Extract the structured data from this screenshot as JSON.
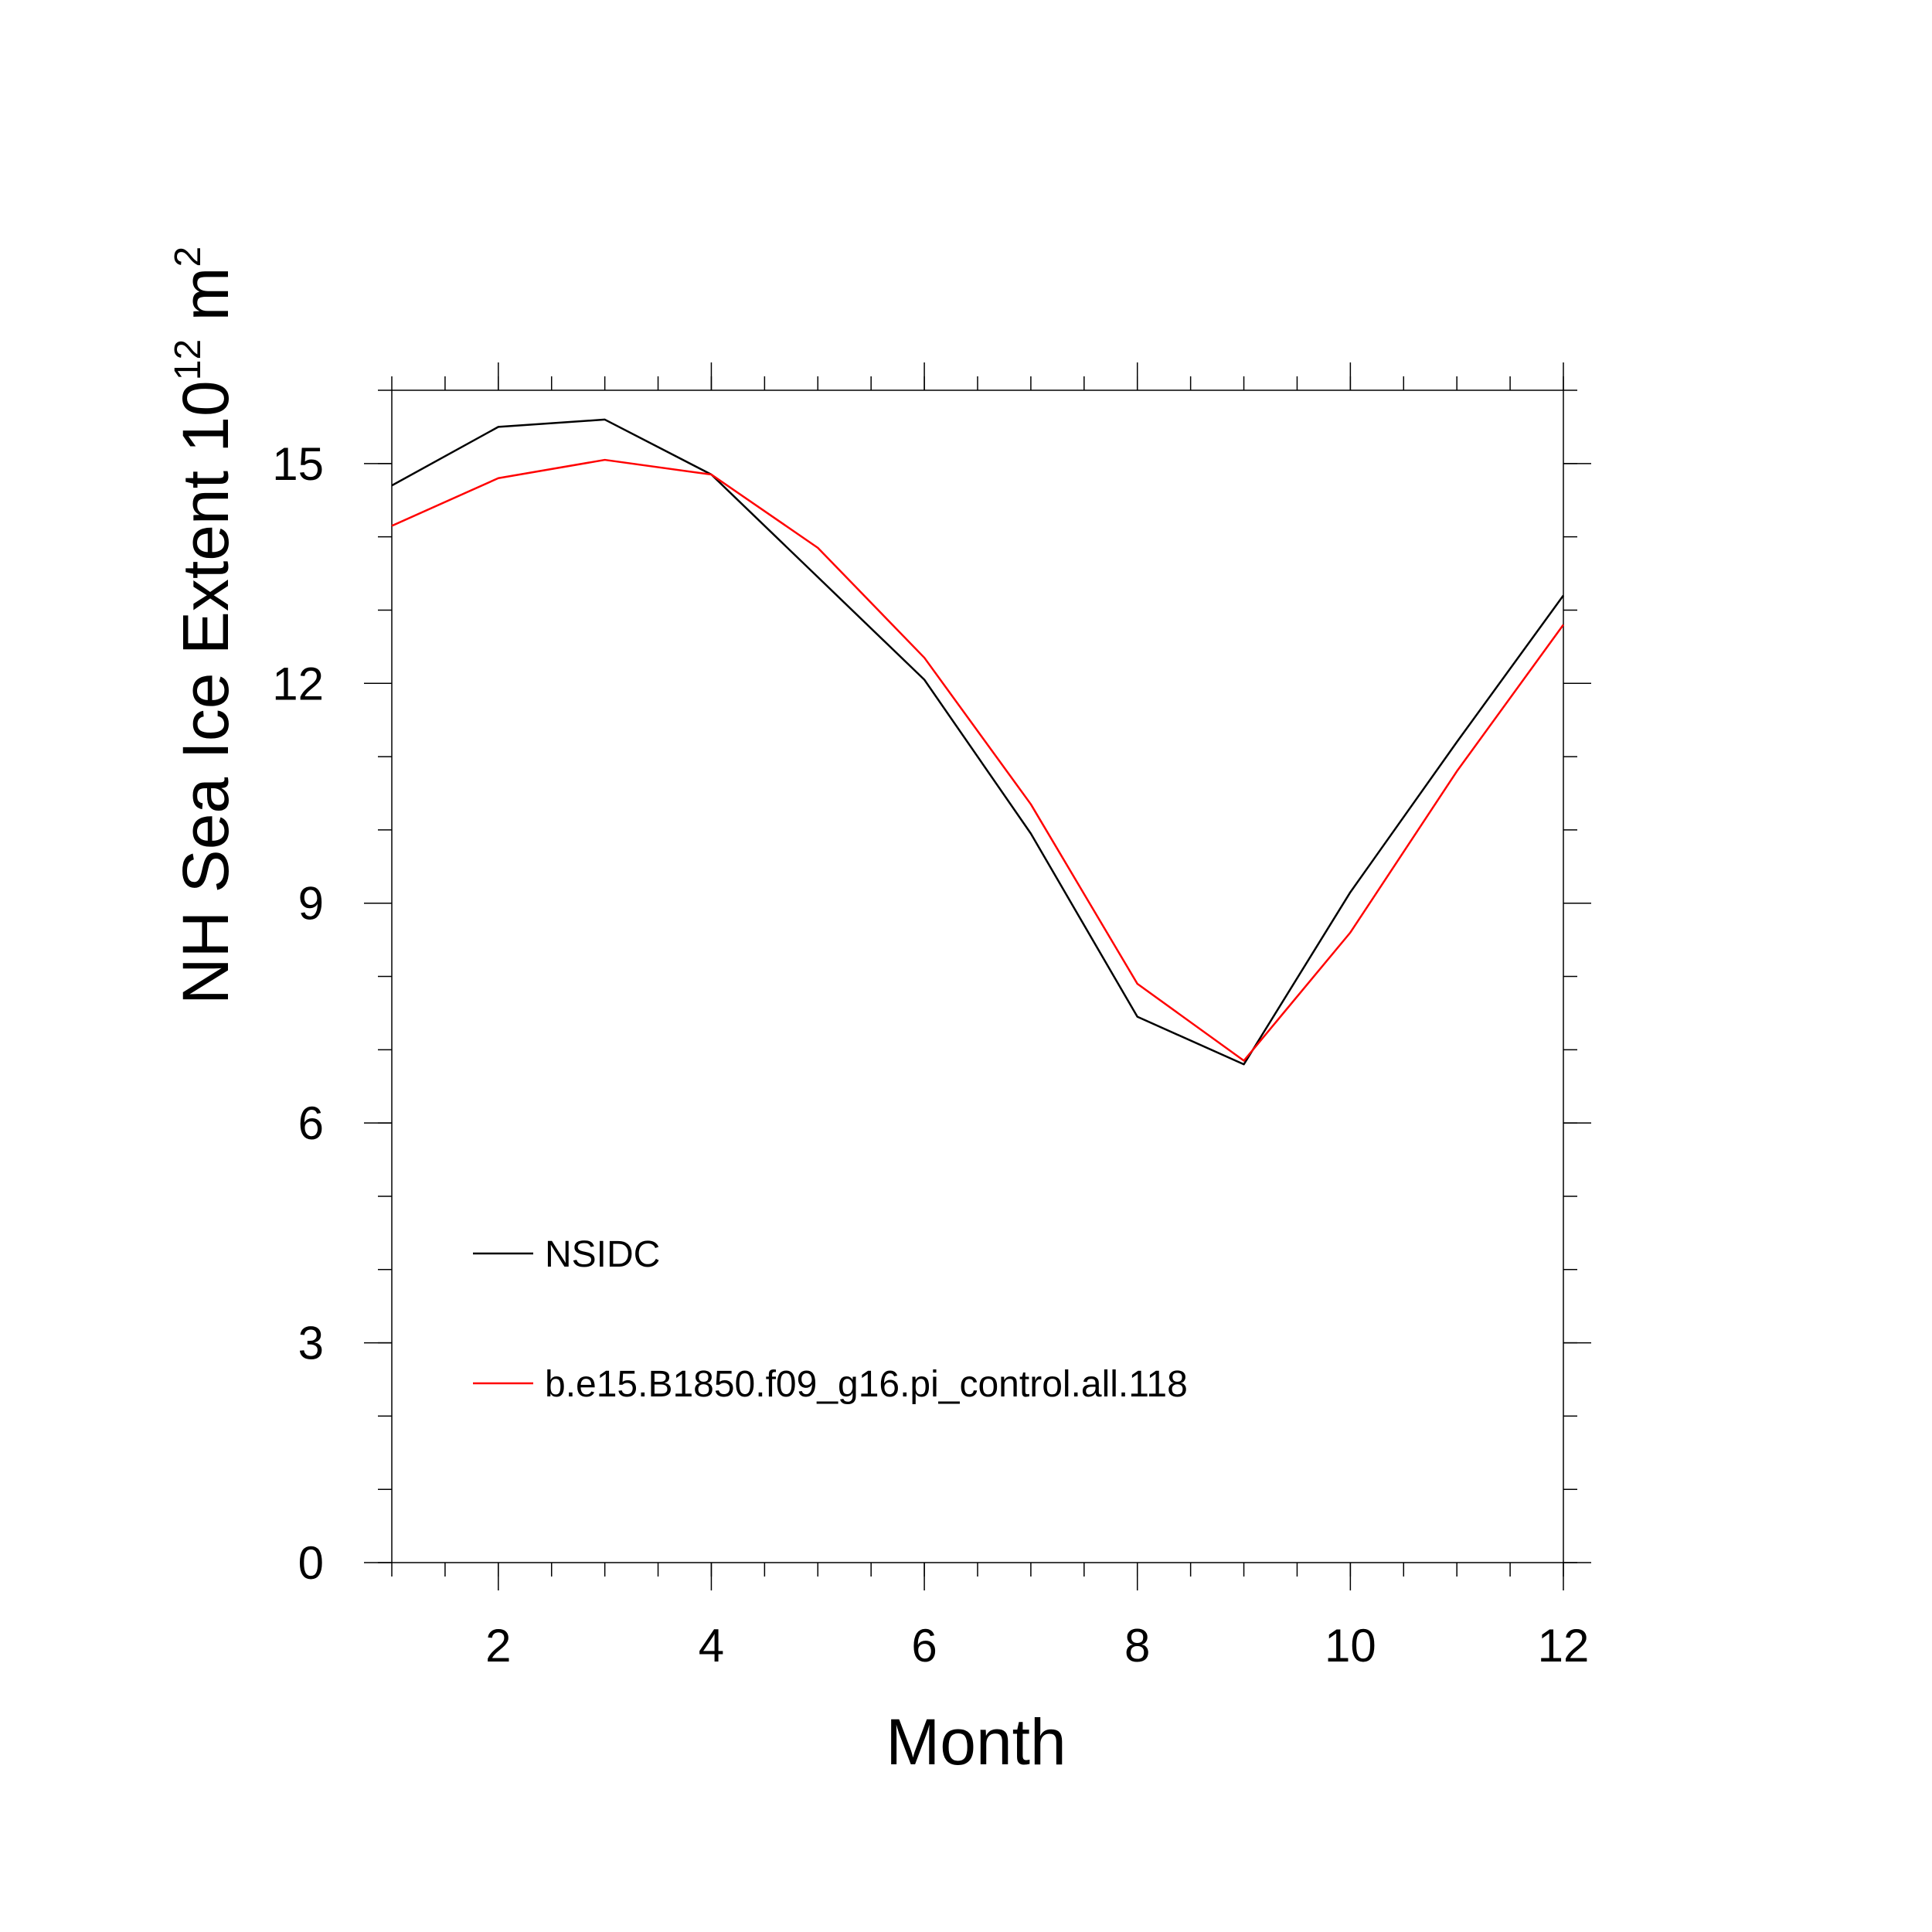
{
  "chart_data": {
    "type": "line",
    "title": "",
    "xlabel": "Month",
    "ylabel_main": "NH Sea Ice Extent 10",
    "ylabel_exp": "12",
    "ylabel_unit": " m",
    "ylabel_unit_exp": "2",
    "xlim": [
      1,
      12
    ],
    "ylim": [
      0,
      16
    ],
    "xticks": [
      2,
      4,
      6,
      8,
      10,
      12
    ],
    "yticks": [
      0,
      3,
      6,
      9,
      12,
      15
    ],
    "grid": false,
    "legend_position": "lower-left",
    "x": [
      1,
      2,
      3,
      4,
      5,
      6,
      7,
      8,
      9,
      10,
      11,
      12
    ],
    "series": [
      {
        "name": "NSIDC",
        "color": "#000000",
        "values": [
          14.7,
          15.5,
          15.6,
          14.85,
          13.45,
          12.05,
          9.95,
          7.45,
          6.8,
          9.15,
          11.2,
          13.2
        ]
      },
      {
        "name": "b.e15.B1850.f09_g16.pi_control.all.118",
        "color": "#ff0000",
        "values": [
          14.15,
          14.8,
          15.05,
          14.85,
          13.85,
          12.35,
          10.35,
          7.9,
          6.85,
          8.6,
          10.8,
          12.8
        ]
      }
    ]
  }
}
